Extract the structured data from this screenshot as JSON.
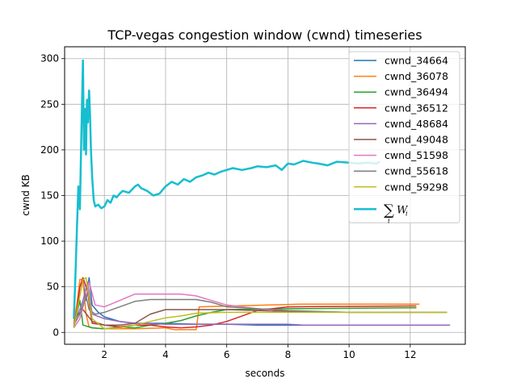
{
  "chart_data": {
    "type": "line",
    "title": "TCP-vegas congestion window (cwnd) timeseries",
    "xlabel": "seconds",
    "ylabel": "cwnd KB",
    "xlim": [
      0.7,
      13.8
    ],
    "ylim": [
      -13,
      313
    ],
    "xticks": [
      2,
      4,
      6,
      8,
      10,
      12
    ],
    "yticks": [
      0,
      50,
      100,
      150,
      200,
      250,
      300
    ],
    "grid": true,
    "legend_position": "top-right",
    "series": [
      {
        "name": "cwnd_34664",
        "color": "#1f77b4",
        "width": 1.5,
        "x": [
          1.0,
          1.1,
          1.2,
          1.3,
          1.4,
          1.5,
          1.6,
          1.8,
          2.0,
          2.5,
          3.0,
          3.5,
          4.0,
          5.0,
          6.0,
          7.0,
          8.0,
          9.0,
          10.0,
          11.0,
          12.0,
          13.0,
          13.3
        ],
        "y": [
          18,
          24,
          50,
          57,
          35,
          60,
          30,
          22,
          17,
          12,
          10,
          10,
          10,
          9,
          9,
          8,
          8,
          8,
          8,
          8,
          8,
          8,
          8
        ]
      },
      {
        "name": "cwnd_36078",
        "color": "#ff7f0e",
        "width": 1.5,
        "x": [
          1.0,
          1.1,
          1.2,
          1.3,
          1.4,
          1.5,
          1.6,
          2.0,
          3.0,
          4.0,
          4.3,
          5.0,
          5.1,
          8.4,
          12.3
        ],
        "y": [
          12,
          30,
          58,
          58,
          20,
          6,
          5,
          4,
          4,
          5,
          3,
          3,
          28,
          31,
          31
        ]
      },
      {
        "name": "cwnd_36494",
        "color": "#2ca02c",
        "width": 1.5,
        "x": [
          1.0,
          1.1,
          1.2,
          1.3,
          1.6,
          2.0,
          2.5,
          3.0,
          3.5,
          4.0,
          4.5,
          5.0,
          5.5,
          6.0,
          8.0,
          12.2
        ],
        "y": [
          6,
          20,
          35,
          8,
          5,
          4,
          6,
          5,
          8,
          10,
          13,
          18,
          22,
          25,
          26,
          27
        ]
      },
      {
        "name": "cwnd_36512",
        "color": "#d62728",
        "width": 1.5,
        "x": [
          1.0,
          1.1,
          1.2,
          1.3,
          1.45,
          1.6,
          2.0,
          2.5,
          3.0,
          3.5,
          4.0,
          4.5,
          5.0,
          5.5,
          6.0,
          6.5,
          7.0,
          8.0,
          12.2
        ],
        "y": [
          6,
          25,
          50,
          60,
          45,
          10,
          8,
          6,
          8,
          8,
          6,
          5,
          6,
          8,
          12,
          18,
          24,
          28,
          29
        ]
      },
      {
        "name": "cwnd_48684",
        "color": "#9467bd",
        "width": 1.5,
        "x": [
          1.0,
          1.2,
          1.3,
          1.45,
          1.6,
          2.0,
          2.5,
          3.0,
          4.0,
          5.0,
          6.0,
          7.0,
          8.0,
          8.5,
          9.0,
          10.0,
          11.0,
          12.0,
          13.0,
          13.3
        ],
        "y": [
          10,
          25,
          35,
          55,
          20,
          15,
          12,
          10,
          9,
          9,
          9,
          9,
          9,
          8,
          8,
          8,
          8,
          8,
          8,
          8
        ]
      },
      {
        "name": "cwnd_49048",
        "color": "#8c564b",
        "width": 1.5,
        "x": [
          1.0,
          1.1,
          1.3,
          1.6,
          2.0,
          2.5,
          3.0,
          3.5,
          4.0,
          5.0,
          6.0,
          7.0,
          8.0,
          10.0,
          13.2
        ],
        "y": [
          8,
          18,
          25,
          12,
          8,
          8,
          10,
          20,
          25,
          25,
          25,
          24,
          23,
          22,
          22
        ]
      },
      {
        "name": "cwnd_51598",
        "color": "#e377c2",
        "width": 1.5,
        "x": [
          1.0,
          1.2,
          1.4,
          1.5,
          1.7,
          2.0,
          2.5,
          3.0,
          3.5,
          4.0,
          4.5,
          5.0,
          5.5,
          6.0,
          7.0,
          7.5
        ],
        "y": [
          5,
          15,
          40,
          55,
          30,
          28,
          35,
          42,
          42,
          42,
          42,
          40,
          35,
          30,
          26,
          24
        ]
      },
      {
        "name": "cwnd_55618",
        "color": "#7f7f7f",
        "width": 1.5,
        "x": [
          1.0,
          1.2,
          1.4,
          1.5,
          1.7,
          2.0,
          2.5,
          3.0,
          3.5,
          4.0,
          5.0,
          5.5,
          6.0,
          7.0,
          8.0,
          9.0,
          10.0,
          11.0,
          12.0,
          13.2
        ],
        "y": [
          8,
          20,
          40,
          25,
          20,
          22,
          28,
          34,
          36,
          36,
          36,
          33,
          28,
          26,
          24,
          23,
          22,
          22,
          22,
          22
        ]
      },
      {
        "name": "cwnd_59298",
        "color": "#bcbd22",
        "width": 1.5,
        "x": [
          1.0,
          1.2,
          1.3,
          1.4,
          1.6,
          2.0,
          2.5,
          3.0,
          3.5,
          4.0,
          4.5,
          5.0,
          6.0,
          8.0,
          10.0,
          13.2
        ],
        "y": [
          5,
          40,
          58,
          60,
          15,
          4,
          5,
          8,
          12,
          16,
          18,
          21,
          22,
          22,
          22,
          22
        ]
      },
      {
        "name": "sum_W_i",
        "legend_text": "∑ W_i",
        "color": "#17becf",
        "width": 2.5,
        "x": [
          1.0,
          1.05,
          1.1,
          1.15,
          1.2,
          1.25,
          1.3,
          1.33,
          1.37,
          1.4,
          1.43,
          1.46,
          1.5,
          1.53,
          1.56,
          1.6,
          1.65,
          1.7,
          1.8,
          1.9,
          2.0,
          2.1,
          2.2,
          2.3,
          2.4,
          2.5,
          2.6,
          2.8,
          3.0,
          3.1,
          3.2,
          3.4,
          3.6,
          3.8,
          4.0,
          4.2,
          4.4,
          4.6,
          4.8,
          5.0,
          5.2,
          5.4,
          5.6,
          5.8,
          6.0,
          6.2,
          6.5,
          6.8,
          7.0,
          7.3,
          7.6,
          7.8,
          8.0,
          8.2,
          8.5,
          8.8,
          9.0,
          9.3,
          9.6,
          10.0,
          10.3,
          10.6,
          10.9,
          11.0
        ],
        "y": [
          15,
          60,
          110,
          160,
          135,
          220,
          298,
          200,
          245,
          195,
          255,
          230,
          265,
          240,
          200,
          170,
          145,
          138,
          140,
          136,
          138,
          145,
          142,
          150,
          148,
          152,
          155,
          153,
          160,
          162,
          158,
          155,
          150,
          152,
          160,
          165,
          162,
          168,
          165,
          170,
          172,
          175,
          173,
          176,
          178,
          180,
          178,
          180,
          182,
          181,
          183,
          178,
          185,
          184,
          188,
          186,
          185,
          183,
          187,
          186,
          185,
          186,
          185,
          187
        ]
      }
    ]
  }
}
